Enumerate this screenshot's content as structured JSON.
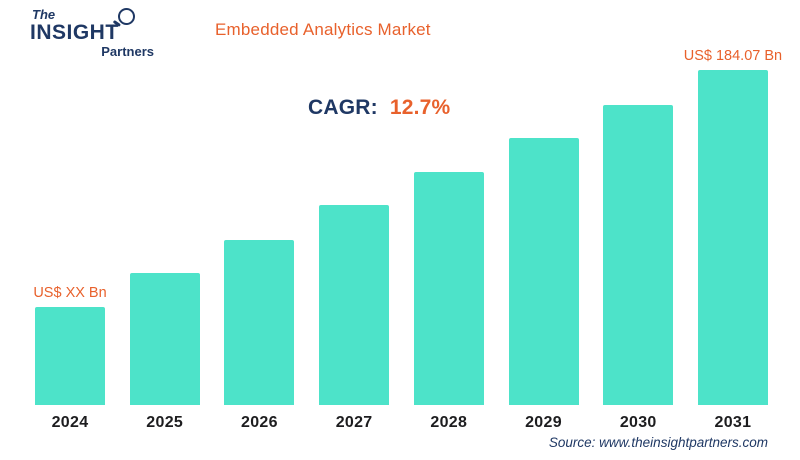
{
  "header": {
    "logo": {
      "line1": "The",
      "line2": "INSIGHT",
      "line3": "Partners"
    },
    "title": "Embedded Analytics Market"
  },
  "overlay": {
    "cagr_label": "CAGR:",
    "cagr_value": "12.7%"
  },
  "footer": {
    "source": "Source: www.theinsightpartners.com"
  },
  "colors": {
    "bar": "#4DE3C9",
    "accent_orange": "#E8612C",
    "navy": "#1F3864"
  },
  "chart_data": {
    "type": "bar",
    "title": "Embedded Analytics Market",
    "categories": [
      "2024",
      "2025",
      "2026",
      "2027",
      "2028",
      "2029",
      "2030",
      "2031"
    ],
    "values": [
      29.3,
      39.4,
      49.3,
      59.7,
      69.6,
      79.7,
      89.6,
      100
    ],
    "value_unit": "percent of tallest bar (only first and last bars carry printed value labels)",
    "value_labels": [
      "US$ XX Bn",
      "",
      "",
      "",
      "",
      "",
      "",
      "US$ 184.07 Bn"
    ],
    "annotation": "CAGR: 12.7%",
    "xlabel": "",
    "ylabel": "",
    "grid": false,
    "legend": false
  }
}
